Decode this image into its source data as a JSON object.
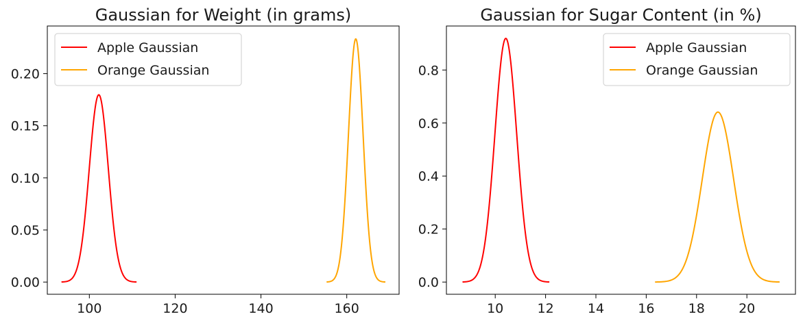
{
  "chart_data": [
    {
      "type": "line",
      "title": "Gaussian for Weight (in grams)",
      "xlabel": "",
      "ylabel": "",
      "xlim": [
        90.2,
        172.2
      ],
      "ylim": [
        -0.0117,
        0.2457
      ],
      "xticks": [
        100,
        120,
        140,
        160
      ],
      "yticks": [
        0.0,
        0.05,
        0.1,
        0.15,
        0.2
      ],
      "ytick_decimals": 2,
      "grid": false,
      "legend_position": "top-left",
      "series": [
        {
          "name": "Apple Gaussian",
          "color": "#ff0000",
          "mean": 102.2,
          "std": 2.22,
          "x_range": [
            93.5,
            111.0
          ]
        },
        {
          "name": "Orange Gaussian",
          "color": "#ffa500",
          "mean": 162.1,
          "std": 1.71,
          "x_range": [
            155.3,
            169.0
          ]
        }
      ]
    },
    {
      "type": "line",
      "title": "Gaussian for Sugar Content (in %)",
      "xlabel": "",
      "ylabel": "",
      "xlim": [
        8.06,
        21.93
      ],
      "ylim": [
        -0.046,
        0.966
      ],
      "xticks": [
        10,
        12,
        14,
        16,
        18,
        20
      ],
      "yticks": [
        0.0,
        0.2,
        0.4,
        0.6,
        0.8
      ],
      "ytick_decimals": 1,
      "grid": false,
      "legend_position": "top-right",
      "series": [
        {
          "name": "Apple Gaussian",
          "color": "#ff0000",
          "mean": 10.42,
          "std": 0.434,
          "x_range": [
            8.7,
            12.15
          ]
        },
        {
          "name": "Orange Gaussian",
          "color": "#ffa500",
          "mean": 18.85,
          "std": 0.622,
          "x_range": [
            16.35,
            21.3
          ]
        }
      ]
    }
  ]
}
